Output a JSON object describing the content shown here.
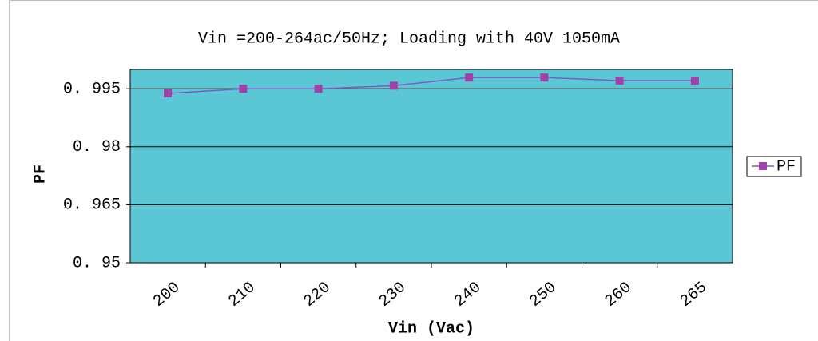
{
  "chart_data": {
    "type": "line",
    "title": "Vin =200-264ac/50Hz; Loading with 40V 1050mA",
    "xlabel": "Vin (Vac)",
    "ylabel": "PF",
    "categories": [
      "200",
      "210",
      "220",
      "230",
      "240",
      "250",
      "260",
      "265"
    ],
    "series": [
      {
        "name": "PF",
        "color": "#a040a8",
        "line_color": "#7a5cc8",
        "values": [
          0.9938,
          0.995,
          0.995,
          0.9958,
          0.9979,
          0.9979,
          0.9971,
          0.9971
        ]
      }
    ],
    "ylim": [
      0.95,
      1.0
    ],
    "yticks": [
      {
        "value": 0.95,
        "label": "0. 95"
      },
      {
        "value": 0.965,
        "label": "0. 965"
      },
      {
        "value": 0.98,
        "label": "0. 98"
      },
      {
        "value": 0.995,
        "label": "0. 995"
      }
    ],
    "grid": true,
    "plot_background": "#5bc6d4",
    "legend": "right"
  }
}
